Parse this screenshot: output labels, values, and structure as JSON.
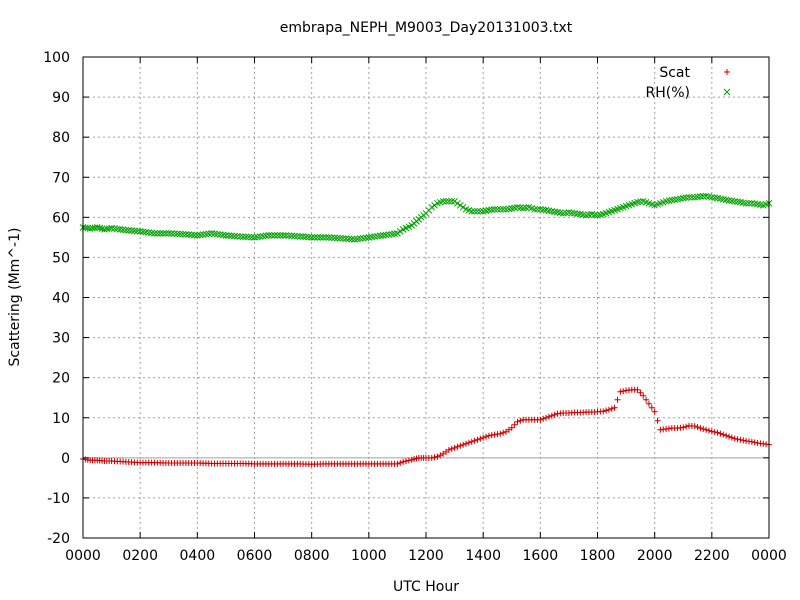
{
  "chart_data": {
    "type": "scatter",
    "title": "embrapa_NEPH_M9003_Day20131003.txt",
    "xlabel": "UTC Hour",
    "ylabel": "Scattering (Mm^-1)",
    "xlim": [
      0,
      24
    ],
    "ylim": [
      -20,
      100
    ],
    "grid": true,
    "legend_position": "top-right",
    "x_ticks": [
      {
        "value": 0,
        "label": "0000"
      },
      {
        "value": 2,
        "label": "0200"
      },
      {
        "value": 4,
        "label": "0400"
      },
      {
        "value": 6,
        "label": "0600"
      },
      {
        "value": 8,
        "label": "0800"
      },
      {
        "value": 10,
        "label": "1000"
      },
      {
        "value": 12,
        "label": "1200"
      },
      {
        "value": 14,
        "label": "1400"
      },
      {
        "value": 16,
        "label": "1600"
      },
      {
        "value": 18,
        "label": "1800"
      },
      {
        "value": 20,
        "label": "2000"
      },
      {
        "value": 22,
        "label": "2200"
      },
      {
        "value": 24,
        "label": "0000"
      }
    ],
    "y_ticks": [
      {
        "value": -20,
        "label": "-20"
      },
      {
        "value": -10,
        "label": "-10"
      },
      {
        "value": 0,
        "label": "0"
      },
      {
        "value": 10,
        "label": "10"
      },
      {
        "value": 20,
        "label": "20"
      },
      {
        "value": 30,
        "label": "30"
      },
      {
        "value": 40,
        "label": "40"
      },
      {
        "value": 50,
        "label": "50"
      },
      {
        "value": 60,
        "label": "60"
      },
      {
        "value": 70,
        "label": "70"
      },
      {
        "value": 80,
        "label": "80"
      },
      {
        "value": 90,
        "label": "90"
      },
      {
        "value": 100,
        "label": "100"
      }
    ],
    "series": [
      {
        "name": "Scat",
        "color": "#cc0000",
        "marker": "plus",
        "x": [
          0.0,
          0.25,
          0.5,
          0.75,
          1.0,
          1.5,
          2.0,
          2.5,
          3.0,
          3.5,
          4.0,
          4.5,
          5.0,
          5.5,
          6.0,
          6.5,
          7.0,
          7.5,
          8.0,
          8.5,
          9.0,
          9.5,
          10.0,
          10.5,
          11.0,
          11.2,
          11.5,
          11.75,
          12.0,
          12.2,
          12.4,
          12.6,
          12.8,
          13.0,
          13.2,
          13.4,
          13.6,
          13.8,
          14.0,
          14.2,
          14.4,
          14.6,
          14.8,
          15.0,
          15.2,
          15.4,
          15.6,
          15.8,
          16.0,
          16.2,
          16.4,
          16.6,
          16.8,
          17.0,
          17.2,
          17.4,
          17.6,
          17.8,
          18.0,
          18.2,
          18.4,
          18.6,
          18.8,
          19.0,
          19.2,
          19.4,
          19.6,
          19.8,
          20.0,
          20.2,
          20.4,
          20.6,
          20.8,
          21.0,
          21.2,
          21.4,
          21.6,
          21.8,
          22.0,
          22.2,
          22.4,
          22.6,
          22.8,
          23.0,
          23.2,
          23.4,
          23.6,
          23.8,
          24.0
        ],
        "y": [
          -0.3,
          -0.6,
          -0.6,
          -0.8,
          -0.8,
          -1.0,
          -1.2,
          -1.2,
          -1.3,
          -1.3,
          -1.3,
          -1.4,
          -1.4,
          -1.4,
          -1.5,
          -1.5,
          -1.5,
          -1.5,
          -1.6,
          -1.5,
          -1.5,
          -1.5,
          -1.5,
          -1.5,
          -1.5,
          -1.0,
          -0.5,
          0.0,
          0.0,
          0.0,
          0.3,
          1.0,
          2.0,
          2.5,
          3.0,
          3.5,
          4.0,
          4.5,
          5.0,
          5.5,
          5.8,
          6.0,
          6.5,
          7.5,
          9.0,
          9.5,
          9.5,
          9.5,
          9.5,
          10.0,
          10.5,
          11.0,
          11.2,
          11.2,
          11.3,
          11.3,
          11.4,
          11.4,
          11.5,
          11.6,
          12.0,
          12.5,
          16.5,
          16.8,
          17.0,
          17.0,
          15.5,
          13.5,
          11.5,
          7.0,
          7.2,
          7.4,
          7.4,
          7.6,
          8.0,
          7.9,
          7.4,
          7.0,
          6.6,
          6.3,
          5.8,
          5.3,
          4.8,
          4.5,
          4.2,
          4.0,
          3.7,
          3.5,
          3.3
        ]
      },
      {
        "name": "RH(%)",
        "color": "#00a000",
        "marker": "cross",
        "x": [
          0.0,
          0.25,
          0.5,
          0.75,
          1.0,
          1.5,
          2.0,
          2.5,
          3.0,
          3.5,
          4.0,
          4.5,
          5.0,
          5.5,
          6.0,
          6.5,
          7.0,
          7.5,
          8.0,
          8.5,
          9.0,
          9.5,
          10.0,
          10.5,
          11.0,
          11.2,
          11.5,
          11.75,
          12.0,
          12.2,
          12.4,
          12.6,
          12.8,
          13.0,
          13.2,
          13.4,
          13.6,
          13.8,
          14.0,
          14.2,
          14.4,
          14.6,
          14.8,
          15.0,
          15.2,
          15.4,
          15.6,
          15.8,
          16.0,
          16.2,
          16.4,
          16.6,
          16.8,
          17.0,
          17.2,
          17.4,
          17.6,
          17.8,
          18.0,
          18.2,
          18.4,
          18.6,
          18.8,
          19.0,
          19.2,
          19.4,
          19.6,
          19.8,
          20.0,
          20.2,
          20.4,
          20.6,
          20.8,
          21.0,
          21.2,
          21.4,
          21.6,
          21.8,
          22.0,
          22.2,
          22.4,
          22.6,
          22.8,
          23.0,
          23.2,
          23.4,
          23.6,
          23.8,
          24.0
        ],
        "y": [
          57.5,
          57.2,
          57.5,
          57.0,
          57.3,
          56.8,
          56.5,
          56.0,
          56.0,
          55.8,
          55.5,
          56.0,
          55.5,
          55.2,
          55.0,
          55.5,
          55.5,
          55.3,
          55.0,
          55.0,
          54.8,
          54.5,
          55.0,
          55.5,
          56.0,
          57.0,
          58.0,
          59.5,
          61.0,
          62.5,
          63.5,
          64.0,
          64.0,
          64.0,
          63.0,
          62.0,
          61.5,
          61.5,
          61.5,
          61.8,
          62.0,
          62.0,
          62.0,
          62.2,
          62.5,
          62.3,
          62.5,
          62.0,
          62.0,
          61.8,
          61.5,
          61.3,
          61.0,
          61.2,
          61.0,
          60.8,
          60.5,
          60.8,
          60.5,
          60.8,
          61.3,
          61.8,
          62.3,
          62.8,
          63.3,
          63.8,
          64.0,
          63.5,
          63.0,
          63.5,
          64.0,
          64.3,
          64.5,
          64.8,
          65.0,
          65.0,
          65.2,
          65.3,
          65.0,
          64.8,
          64.5,
          64.2,
          64.0,
          63.8,
          63.5,
          63.5,
          63.3,
          63.0,
          63.5
        ]
      }
    ]
  }
}
